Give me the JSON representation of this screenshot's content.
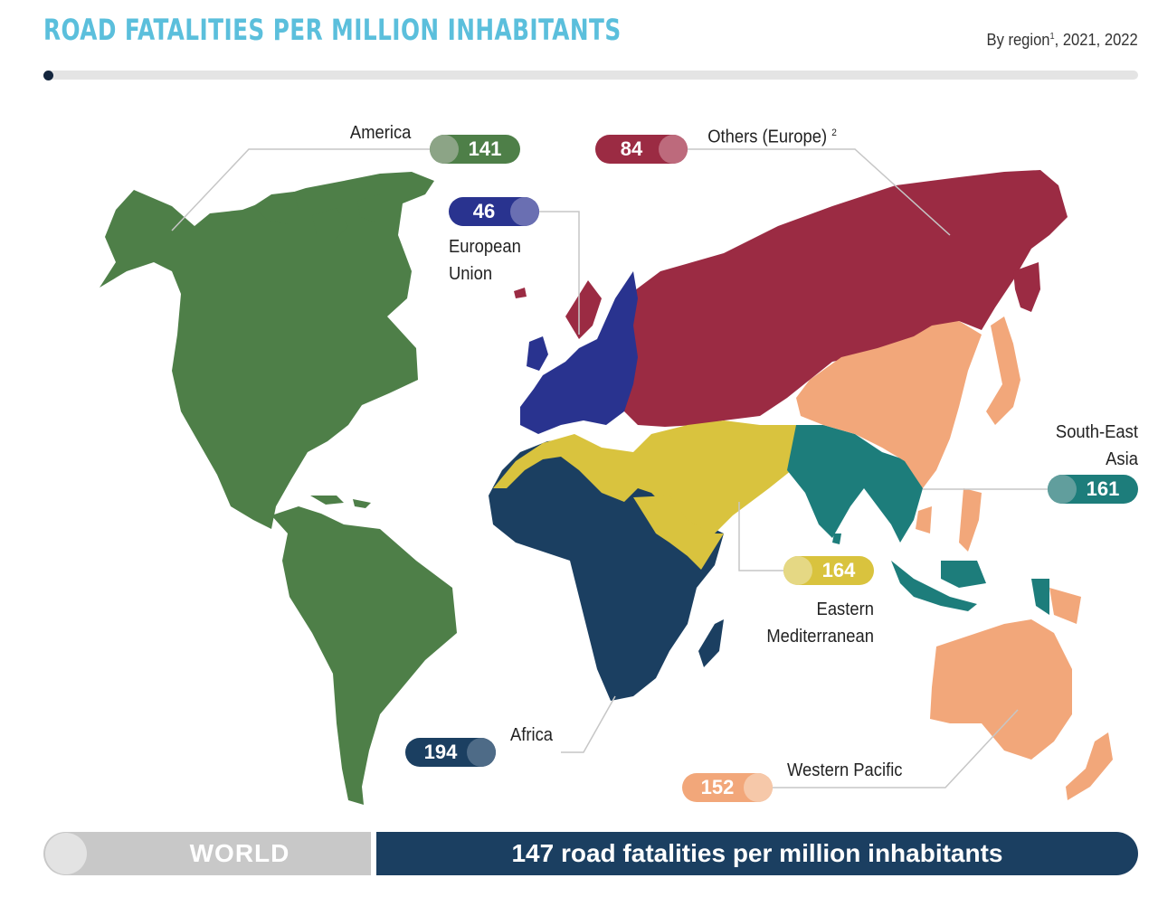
{
  "header": {
    "title": "ROAD FATALITIES PER MILLION INHABITANTS",
    "subtitle": "By region",
    "subtitle_sup": "1",
    "subtitle_years": ", 2021, 2022"
  },
  "regions": {
    "america": {
      "label": "America",
      "value": "141",
      "color": "#4e7f48",
      "knob": "#8ca486"
    },
    "others_europe": {
      "label": "Others (Europe)",
      "footnote": "2",
      "value": "84",
      "color": "#9b2b43",
      "knob": "#bd6a7c"
    },
    "eu": {
      "label_line1": "European",
      "label_line2": "Union",
      "value": "46",
      "color": "#29338f",
      "knob": "#6a6fb2"
    },
    "sea": {
      "label_line1": "South-East",
      "label_line2": "Asia",
      "value": "161",
      "color": "#1d7d7b",
      "knob": "#619e9d"
    },
    "em": {
      "label_line1": "Eastern",
      "label_line2": "Mediterranean",
      "value": "164",
      "color": "#d9c33e",
      "knob": "#e5d884"
    },
    "africa": {
      "label": "Africa",
      "value": "194",
      "color": "#1b3f61",
      "knob": "#4e6b87"
    },
    "wp": {
      "label": "Western Pacific",
      "value": "152",
      "color": "#f2a77a",
      "knob": "#f6c8a9"
    }
  },
  "world": {
    "label": "WORLD",
    "text": "147 road fatalities per million inhabitants",
    "color_left": "#c8c8c8",
    "color_right": "#1b3f61"
  }
}
